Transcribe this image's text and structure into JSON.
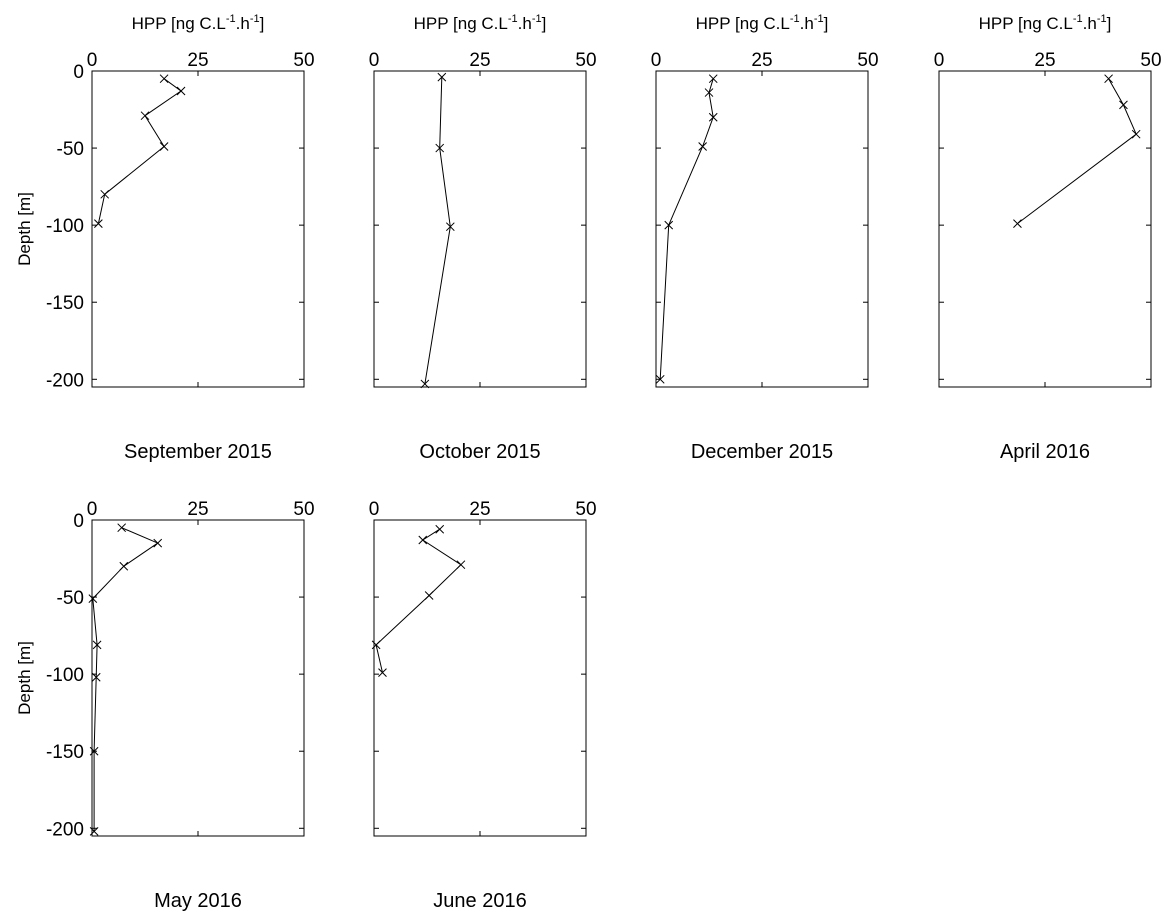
{
  "figure": {
    "x_axis_title": {
      "base": "HPP [ng C.L",
      "sup1": "-1",
      "mid": ".h",
      "sup2": "-1",
      "end": "]"
    },
    "y_axis_title": "Depth [m]",
    "xticks": [
      "0",
      "25",
      "50"
    ],
    "yticks": [
      "0",
      "-50",
      "-100",
      "-150",
      "-200"
    ]
  },
  "chart_data": [
    {
      "type": "line",
      "caption": "September 2015",
      "xlabel": "HPP [ng C.L-1.h-1]",
      "ylabel": "Depth [m]",
      "xlim": [
        0,
        50
      ],
      "ylim": [
        -205,
        0
      ],
      "marker": "x",
      "x": [
        17,
        21,
        12.5,
        17,
        3,
        1.5
      ],
      "y": [
        -5,
        -13,
        -29,
        -49,
        -80,
        -99
      ]
    },
    {
      "type": "line",
      "caption": "October 2015",
      "xlabel": "HPP [ng C.L-1.h-1]",
      "ylabel": "",
      "xlim": [
        0,
        50
      ],
      "ylim": [
        -205,
        0
      ],
      "marker": "x",
      "x": [
        16,
        15.5,
        18,
        12
      ],
      "y": [
        -4,
        -50,
        -101,
        -203
      ]
    },
    {
      "type": "line",
      "caption": "December 2015",
      "xlabel": "HPP [ng C.L-1.h-1]",
      "ylabel": "",
      "xlim": [
        0,
        50
      ],
      "ylim": [
        -205,
        0
      ],
      "marker": "x",
      "x": [
        13.5,
        12.5,
        13.5,
        11,
        3,
        1
      ],
      "y": [
        -5,
        -14,
        -30,
        -49,
        -100,
        -200
      ]
    },
    {
      "type": "line",
      "caption": "April 2016",
      "xlabel": "HPP [ng C.L-1.h-1]",
      "ylabel": "",
      "xlim": [
        0,
        50
      ],
      "ylim": [
        -205,
        0
      ],
      "marker": "x",
      "x": [
        40,
        43.5,
        46.5,
        18.5
      ],
      "y": [
        -5,
        -22,
        -41,
        -99
      ]
    },
    {
      "type": "line",
      "caption": "May 2016",
      "xlabel": "",
      "ylabel": "Depth [m]",
      "xlim": [
        0,
        50
      ],
      "ylim": [
        -205,
        0
      ],
      "marker": "x",
      "x": [
        7,
        15.5,
        7.5,
        0.2,
        1.2,
        1,
        0.5,
        0.5
      ],
      "y": [
        -5,
        -15,
        -30,
        -51,
        -81,
        -102,
        -150,
        -202
      ]
    },
    {
      "type": "line",
      "caption": "June 2016",
      "xlabel": "",
      "ylabel": "",
      "xlim": [
        0,
        50
      ],
      "ylim": [
        -205,
        0
      ],
      "marker": "x",
      "x": [
        15.5,
        11.5,
        20.5,
        13,
        0.5,
        2
      ],
      "y": [
        -6,
        -13,
        -29,
        -49,
        -81,
        -99
      ]
    }
  ]
}
